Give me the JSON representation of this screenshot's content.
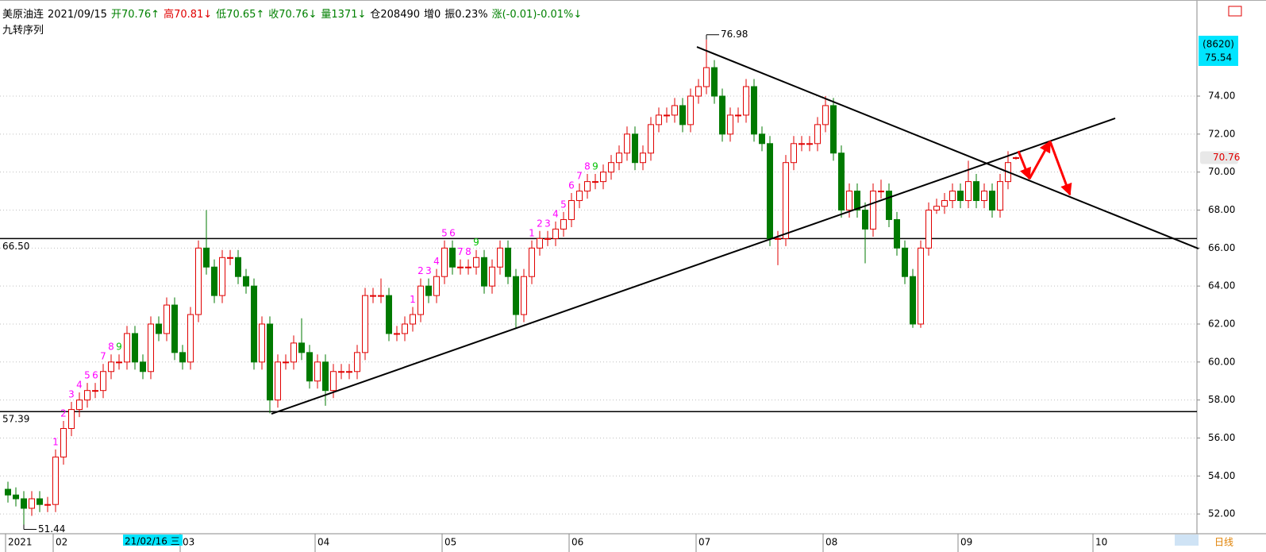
{
  "chart_data": {
    "type": "candlestick",
    "header": [
      {
        "text": "美原油连",
        "color": "#000000"
      },
      {
        "text": "2021/09/15",
        "color": "#000000"
      },
      {
        "text": "开70.76↑",
        "color": "#008000"
      },
      {
        "text": "高70.81↓",
        "color": "#e00000"
      },
      {
        "text": "低70.65↑",
        "color": "#008000"
      },
      {
        "text": "收70.76↓",
        "color": "#008000"
      },
      {
        "text": "量1371↓",
        "color": "#008000"
      },
      {
        "text": "仓208490",
        "color": "#000000"
      },
      {
        "text": "增0",
        "color": "#000000"
      },
      {
        "text": "振0.23%",
        "color": "#000000"
      },
      {
        "text": "涨(-0.01)-0.01%↓",
        "color": "#008000"
      }
    ],
    "indicator": "九转序列",
    "up_color": "#e00000",
    "down_color": "#007a00",
    "ylim": [
      50.96,
      79.06
    ],
    "yticks": [
      {
        "value": 52,
        "label": "52.00"
      },
      {
        "value": 54,
        "label": "54.00"
      },
      {
        "value": 56,
        "label": "56.00"
      },
      {
        "value": 58,
        "label": "58.00"
      },
      {
        "value": 60,
        "label": "60.00"
      },
      {
        "value": 62,
        "label": "62.00"
      },
      {
        "value": 64,
        "label": "64.00"
      },
      {
        "value": 66,
        "label": "66.00"
      },
      {
        "value": 68,
        "label": "68.00"
      },
      {
        "value": 70,
        "label": "70.00"
      },
      {
        "value": 72,
        "label": "72.00"
      },
      {
        "value": 74,
        "label": "74.00"
      }
    ],
    "grid": true,
    "xticks": [
      {
        "value": 0,
        "label": "2021"
      },
      {
        "value": 6,
        "label": "02"
      },
      {
        "value": 22,
        "label": "03"
      },
      {
        "value": 39,
        "label": "04"
      },
      {
        "value": 55,
        "label": "05"
      },
      {
        "value": 71,
        "label": "06"
      },
      {
        "value": 87,
        "label": "07"
      },
      {
        "value": 103,
        "label": "08"
      },
      {
        "value": 120,
        "label": "09"
      },
      {
        "value": 137,
        "label": "10"
      }
    ],
    "candles": [
      [
        53.3,
        53.7,
        52.6,
        53.0
      ],
      [
        53.0,
        53.4,
        52.4,
        52.8
      ],
      [
        52.8,
        53.2,
        51.44,
        52.3
      ],
      [
        52.3,
        53.2,
        51.9,
        52.8
      ],
      [
        52.8,
        53.2,
        52.1,
        52.5
      ],
      [
        52.5,
        52.9,
        52.1,
        52.5
      ],
      [
        52.5,
        55.4,
        52.1,
        55.0
      ],
      [
        55.0,
        56.9,
        54.6,
        56.5
      ],
      [
        56.5,
        57.9,
        56.1,
        57.5
      ],
      [
        57.5,
        58.4,
        57.1,
        58.0
      ],
      [
        58.0,
        58.9,
        57.6,
        58.5
      ],
      [
        58.5,
        58.9,
        58.1,
        58.5
      ],
      [
        58.5,
        59.9,
        58.1,
        59.5
      ],
      [
        59.5,
        60.4,
        59.1,
        60.0
      ],
      [
        60.0,
        60.4,
        59.6,
        60.0
      ],
      [
        60.0,
        61.9,
        59.6,
        61.5
      ],
      [
        61.5,
        61.9,
        59.6,
        60.0
      ],
      [
        60.0,
        60.4,
        59.1,
        59.5
      ],
      [
        59.5,
        62.4,
        59.1,
        62.0
      ],
      [
        62.0,
        62.4,
        61.1,
        61.5
      ],
      [
        61.5,
        63.4,
        61.1,
        63.0
      ],
      [
        63.0,
        63.4,
        60.1,
        60.5
      ],
      [
        60.5,
        60.9,
        59.6,
        60.0
      ],
      [
        60.0,
        62.9,
        59.6,
        62.5
      ],
      [
        62.5,
        66.4,
        62.1,
        66.0
      ],
      [
        66.0,
        68.0,
        64.6,
        65.0
      ],
      [
        65.0,
        65.4,
        63.1,
        63.5
      ],
      [
        63.5,
        65.9,
        63.1,
        65.5
      ],
      [
        65.5,
        65.9,
        65.1,
        65.5
      ],
      [
        65.5,
        65.9,
        64.1,
        64.5
      ],
      [
        64.5,
        64.9,
        63.6,
        64.0
      ],
      [
        64.0,
        64.4,
        59.6,
        60.0
      ],
      [
        60.0,
        62.4,
        59.6,
        62.0
      ],
      [
        62.0,
        62.4,
        57.3,
        58.0
      ],
      [
        58.0,
        60.4,
        57.6,
        60.0
      ],
      [
        60.0,
        60.4,
        59.6,
        60.0
      ],
      [
        60.0,
        61.4,
        59.6,
        61.0
      ],
      [
        61.0,
        62.3,
        60.1,
        60.5
      ],
      [
        60.5,
        60.9,
        58.6,
        59.0
      ],
      [
        59.0,
        60.4,
        58.6,
        60.0
      ],
      [
        60.0,
        60.4,
        57.7,
        58.5
      ],
      [
        58.5,
        59.9,
        58.1,
        59.5
      ],
      [
        59.5,
        59.9,
        59.1,
        59.5
      ],
      [
        59.5,
        59.9,
        59.1,
        59.5
      ],
      [
        59.5,
        60.9,
        59.1,
        60.5
      ],
      [
        60.5,
        63.9,
        60.1,
        63.5
      ],
      [
        63.5,
        63.9,
        63.1,
        63.5
      ],
      [
        63.5,
        64.4,
        63.1,
        63.5
      ],
      [
        63.5,
        63.9,
        61.1,
        61.5
      ],
      [
        61.5,
        61.9,
        61.1,
        61.5
      ],
      [
        61.5,
        62.4,
        61.1,
        62.0
      ],
      [
        62.0,
        62.9,
        61.6,
        62.5
      ],
      [
        62.5,
        64.4,
        62.1,
        64.0
      ],
      [
        64.0,
        64.4,
        63.1,
        63.5
      ],
      [
        63.5,
        64.9,
        63.1,
        64.5
      ],
      [
        64.5,
        66.4,
        64.1,
        66.0
      ],
      [
        66.0,
        66.4,
        64.6,
        65.0
      ],
      [
        65.0,
        65.4,
        64.6,
        65.0
      ],
      [
        65.0,
        65.4,
        64.6,
        65.0
      ],
      [
        65.0,
        65.9,
        64.6,
        65.5
      ],
      [
        65.5,
        65.9,
        63.6,
        64.0
      ],
      [
        64.0,
        65.4,
        63.6,
        65.0
      ],
      [
        65.0,
        66.4,
        64.6,
        66.0
      ],
      [
        66.0,
        66.4,
        64.1,
        64.5
      ],
      [
        64.5,
        64.9,
        61.8,
        62.5
      ],
      [
        62.5,
        64.9,
        62.1,
        64.5
      ],
      [
        64.5,
        66.4,
        64.1,
        66.0
      ],
      [
        66.0,
        66.9,
        65.6,
        66.5
      ],
      [
        66.5,
        66.9,
        66.1,
        66.5
      ],
      [
        66.5,
        67.4,
        66.1,
        67.0
      ],
      [
        67.0,
        67.9,
        66.6,
        67.5
      ],
      [
        67.5,
        68.9,
        67.1,
        68.5
      ],
      [
        68.5,
        69.4,
        68.1,
        69.0
      ],
      [
        69.0,
        69.9,
        68.6,
        69.5
      ],
      [
        69.5,
        69.9,
        69.1,
        69.5
      ],
      [
        69.5,
        70.4,
        69.1,
        70.0
      ],
      [
        70.0,
        70.9,
        69.6,
        70.5
      ],
      [
        70.5,
        71.4,
        70.1,
        71.0
      ],
      [
        71.0,
        72.4,
        70.6,
        72.0
      ],
      [
        72.0,
        72.4,
        70.1,
        70.5
      ],
      [
        70.5,
        71.4,
        70.1,
        71.0
      ],
      [
        71.0,
        72.9,
        70.6,
        72.5
      ],
      [
        72.5,
        73.4,
        72.1,
        73.0
      ],
      [
        73.0,
        73.4,
        72.6,
        73.0
      ],
      [
        73.0,
        73.9,
        72.6,
        73.5
      ],
      [
        73.5,
        73.9,
        72.1,
        72.5
      ],
      [
        72.5,
        74.4,
        72.1,
        74.0
      ],
      [
        74.0,
        74.9,
        73.6,
        74.5
      ],
      [
        74.5,
        76.98,
        74.1,
        75.5
      ],
      [
        75.5,
        75.9,
        73.6,
        74.0
      ],
      [
        74.0,
        74.4,
        71.6,
        72.0
      ],
      [
        72.0,
        73.4,
        71.6,
        73.0
      ],
      [
        73.0,
        73.4,
        72.6,
        73.0
      ],
      [
        73.0,
        74.9,
        72.6,
        74.5
      ],
      [
        74.5,
        74.9,
        71.6,
        72.0
      ],
      [
        72.0,
        72.4,
        71.1,
        71.5
      ],
      [
        71.5,
        71.9,
        66.1,
        66.5
      ],
      [
        66.5,
        66.9,
        65.1,
        66.5
      ],
      [
        66.5,
        70.9,
        66.1,
        70.5
      ],
      [
        70.5,
        71.9,
        70.1,
        71.5
      ],
      [
        71.5,
        71.9,
        71.1,
        71.5
      ],
      [
        71.5,
        71.9,
        71.1,
        71.5
      ],
      [
        71.5,
        72.9,
        71.1,
        72.5
      ],
      [
        72.5,
        74.0,
        72.1,
        73.5
      ],
      [
        73.5,
        73.9,
        70.6,
        71.0
      ],
      [
        71.0,
        71.4,
        67.6,
        68.0
      ],
      [
        68.0,
        69.4,
        67.6,
        69.0
      ],
      [
        69.0,
        69.4,
        67.6,
        68.0
      ],
      [
        68.0,
        68.4,
        65.2,
        67.0
      ],
      [
        67.0,
        69.4,
        66.6,
        69.0
      ],
      [
        69.0,
        69.6,
        68.6,
        69.0
      ],
      [
        69.0,
        69.4,
        67.1,
        67.5
      ],
      [
        67.5,
        67.9,
        65.6,
        66.0
      ],
      [
        66.0,
        66.4,
        64.1,
        64.5
      ],
      [
        64.5,
        64.9,
        61.8,
        62.0
      ],
      [
        62.0,
        66.4,
        61.8,
        66.0
      ],
      [
        66.0,
        68.4,
        65.6,
        68.0
      ],
      [
        68.0,
        68.6,
        67.8,
        68.2
      ],
      [
        68.2,
        68.9,
        67.8,
        68.5
      ],
      [
        68.5,
        69.4,
        68.1,
        69.0
      ],
      [
        69.0,
        69.4,
        68.1,
        68.5
      ],
      [
        68.5,
        70.6,
        68.1,
        69.5
      ],
      [
        69.5,
        69.9,
        68.1,
        68.5
      ],
      [
        68.5,
        69.4,
        68.1,
        69.0
      ],
      [
        69.0,
        69.4,
        67.6,
        68.0
      ],
      [
        68.0,
        69.9,
        67.6,
        69.5
      ],
      [
        69.5,
        71.1,
        69.1,
        70.5
      ],
      [
        70.76,
        70.81,
        70.65,
        70.76
      ]
    ],
    "levels": [
      {
        "value": 66.5,
        "label": "66.50"
      },
      {
        "value": 57.39,
        "label": "57.39"
      }
    ],
    "extremes": [
      {
        "index": 88,
        "value": 76.98,
        "label": "76.98"
      },
      {
        "index": 2,
        "value": 51.44,
        "label": "51.44"
      }
    ],
    "trendlines": [
      [
        33.2,
        57.27,
        139.5,
        72.83
      ],
      [
        86.8,
        76.59,
        150,
        65.97
      ]
    ],
    "forecast": {
      "color": "#ff0000",
      "points": [
        [
          127.3,
          71.11
        ],
        [
          128.7,
          69.65
        ],
        [
          131.3,
          71.62
        ],
        [
          133.8,
          68.81
        ]
      ]
    },
    "nine_turn_colors": [
      "#ff00ff",
      "#00c000"
    ],
    "nine_turn": [
      {
        "start": 6,
        "labels": [
          1,
          2,
          3,
          4,
          5,
          6,
          7,
          8,
          9
        ]
      },
      {
        "start": 51,
        "labels": [
          1,
          2,
          3,
          4,
          5,
          6,
          7,
          8,
          9
        ]
      },
      {
        "start": 66,
        "labels": [
          1,
          2,
          3,
          4,
          5,
          6,
          7,
          8,
          9
        ]
      }
    ],
    "last_price": {
      "value": 70.76,
      "label": "70.76"
    },
    "cursor_box": [
      "(8620)",
      "75.54"
    ],
    "cursor_date": "21/02/16 三",
    "period": "日线"
  }
}
